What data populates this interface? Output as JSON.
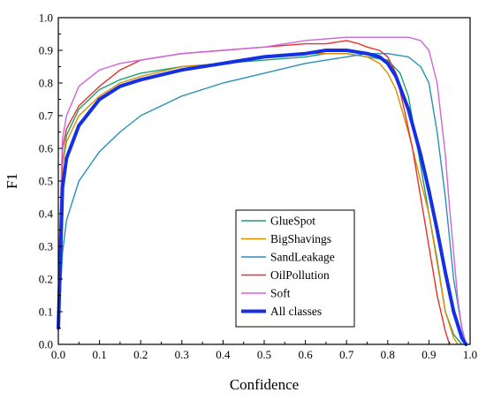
{
  "chart_data": {
    "type": "line",
    "title": "",
    "xlabel": "Confidence",
    "ylabel": "F1",
    "xlim": [
      0.0,
      1.0
    ],
    "ylim": [
      0.0,
      1.0
    ],
    "xticks": [
      "0.0",
      "0.1",
      "0.2",
      "0.3",
      "0.4",
      "0.5",
      "0.6",
      "0.7",
      "0.8",
      "0.9",
      "1.0"
    ],
    "yticks": [
      "0.0",
      "0.1",
      "0.2",
      "0.3",
      "0.4",
      "0.5",
      "0.6",
      "0.7",
      "0.8",
      "0.9",
      "1.0"
    ],
    "grid": false,
    "legend_position": "lower-center",
    "series": [
      {
        "name": "GlueSpot",
        "color": "#1a9e77",
        "x": [
          0.0,
          0.01,
          0.02,
          0.05,
          0.1,
          0.15,
          0.2,
          0.3,
          0.4,
          0.5,
          0.6,
          0.65,
          0.7,
          0.75,
          0.8,
          0.83,
          0.85,
          0.87,
          0.9,
          0.92,
          0.94,
          0.96,
          0.98
        ],
        "y": [
          0.12,
          0.55,
          0.64,
          0.72,
          0.78,
          0.81,
          0.83,
          0.85,
          0.86,
          0.87,
          0.88,
          0.89,
          0.89,
          0.88,
          0.87,
          0.83,
          0.76,
          0.62,
          0.4,
          0.26,
          0.1,
          0.03,
          0.0
        ]
      },
      {
        "name": "BigShavings",
        "color": "#d89000",
        "x": [
          0.0,
          0.01,
          0.02,
          0.05,
          0.1,
          0.15,
          0.2,
          0.3,
          0.4,
          0.5,
          0.6,
          0.65,
          0.7,
          0.75,
          0.78,
          0.8,
          0.82,
          0.85,
          0.88,
          0.9,
          0.92,
          0.94,
          0.96,
          0.97
        ],
        "y": [
          0.12,
          0.55,
          0.62,
          0.7,
          0.76,
          0.8,
          0.82,
          0.85,
          0.86,
          0.88,
          0.89,
          0.89,
          0.89,
          0.88,
          0.86,
          0.83,
          0.78,
          0.65,
          0.5,
          0.4,
          0.25,
          0.1,
          0.02,
          0.0
        ]
      },
      {
        "name": "SandLeakage",
        "color": "#2a90b8",
        "x": [
          0.0,
          0.01,
          0.02,
          0.05,
          0.1,
          0.15,
          0.2,
          0.3,
          0.4,
          0.5,
          0.6,
          0.65,
          0.7,
          0.75,
          0.8,
          0.85,
          0.88,
          0.9,
          0.92,
          0.94,
          0.96,
          0.98,
          0.99
        ],
        "y": [
          0.05,
          0.28,
          0.38,
          0.5,
          0.59,
          0.65,
          0.7,
          0.76,
          0.8,
          0.83,
          0.86,
          0.87,
          0.88,
          0.89,
          0.89,
          0.88,
          0.85,
          0.8,
          0.65,
          0.45,
          0.2,
          0.05,
          0.0
        ]
      },
      {
        "name": "OilPollution",
        "color": "#e8302a",
        "x": [
          0.0,
          0.01,
          0.02,
          0.05,
          0.1,
          0.15,
          0.2,
          0.3,
          0.4,
          0.5,
          0.6,
          0.65,
          0.7,
          0.73,
          0.75,
          0.78,
          0.8,
          0.82,
          0.84,
          0.86,
          0.88,
          0.9,
          0.92,
          0.94,
          0.95
        ],
        "y": [
          0.15,
          0.6,
          0.66,
          0.73,
          0.79,
          0.84,
          0.87,
          0.89,
          0.9,
          0.91,
          0.92,
          0.92,
          0.93,
          0.92,
          0.91,
          0.9,
          0.88,
          0.83,
          0.72,
          0.6,
          0.45,
          0.3,
          0.15,
          0.04,
          0.0
        ]
      },
      {
        "name": "Soft",
        "color": "#cc66dd",
        "x": [
          0.0,
          0.01,
          0.02,
          0.05,
          0.1,
          0.15,
          0.2,
          0.3,
          0.4,
          0.5,
          0.6,
          0.7,
          0.8,
          0.85,
          0.88,
          0.9,
          0.92,
          0.94,
          0.95,
          0.96,
          0.97,
          0.98,
          0.99
        ],
        "y": [
          0.2,
          0.63,
          0.7,
          0.79,
          0.84,
          0.86,
          0.87,
          0.89,
          0.9,
          0.91,
          0.93,
          0.94,
          0.94,
          0.94,
          0.93,
          0.9,
          0.8,
          0.58,
          0.42,
          0.28,
          0.14,
          0.05,
          0.0
        ]
      },
      {
        "name": "All classes",
        "color": "#1530e0",
        "x": [
          0.0,
          0.01,
          0.02,
          0.05,
          0.1,
          0.15,
          0.2,
          0.3,
          0.4,
          0.5,
          0.6,
          0.65,
          0.7,
          0.75,
          0.78,
          0.8,
          0.82,
          0.85,
          0.88,
          0.9,
          0.92,
          0.94,
          0.96,
          0.98,
          0.99
        ],
        "y": [
          0.05,
          0.48,
          0.57,
          0.67,
          0.75,
          0.79,
          0.81,
          0.84,
          0.86,
          0.88,
          0.89,
          0.9,
          0.9,
          0.89,
          0.88,
          0.86,
          0.82,
          0.72,
          0.58,
          0.47,
          0.35,
          0.22,
          0.1,
          0.02,
          0.0
        ]
      }
    ]
  }
}
